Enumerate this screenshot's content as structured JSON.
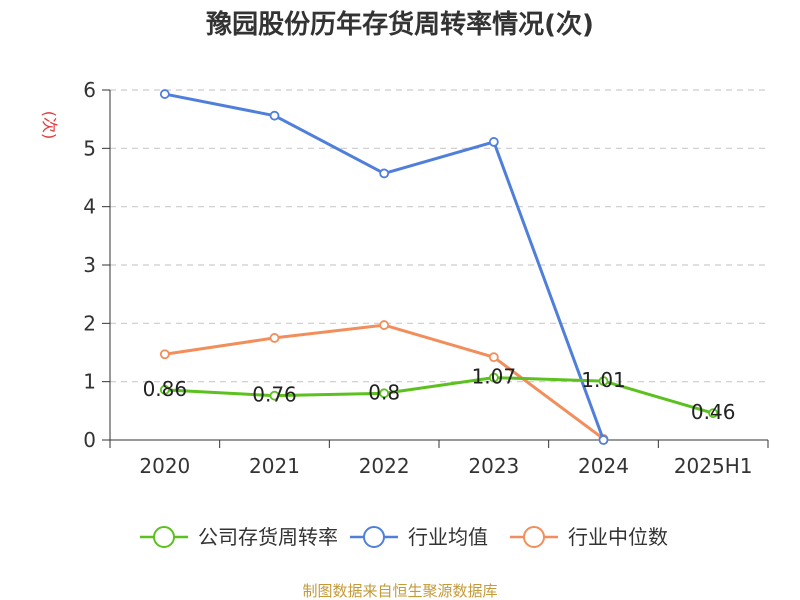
{
  "chart_data": {
    "type": "line",
    "title": "豫园股份历年存货周转率情况(次)",
    "ylabel": "(次)",
    "xlabel": "",
    "categories": [
      "2020",
      "2021",
      "2022",
      "2023",
      "2024",
      "2025H1"
    ],
    "ylim": [
      0,
      6
    ],
    "yticks": [
      "0",
      "1",
      "2",
      "3",
      "4",
      "5",
      "6"
    ],
    "grid": true,
    "legend_position": "bottom",
    "series": [
      {
        "name": "公司存货周转率",
        "color": "#5cc11e",
        "values": [
          0.86,
          0.76,
          0.8,
          1.07,
          1.01,
          0.46
        ],
        "labels": [
          "0.86",
          "0.76",
          "0.8",
          "1.07",
          "1.01",
          "0.46"
        ]
      },
      {
        "name": "行业均值",
        "color": "#4f7fdb",
        "values": [
          5.93,
          5.56,
          4.57,
          5.11,
          0,
          null
        ]
      },
      {
        "name": "行业中位数",
        "color": "#f28e5b",
        "values": [
          1.47,
          1.75,
          1.97,
          1.42,
          0.02,
          null
        ]
      }
    ],
    "source": "制图数据来自恒生聚源数据库"
  }
}
